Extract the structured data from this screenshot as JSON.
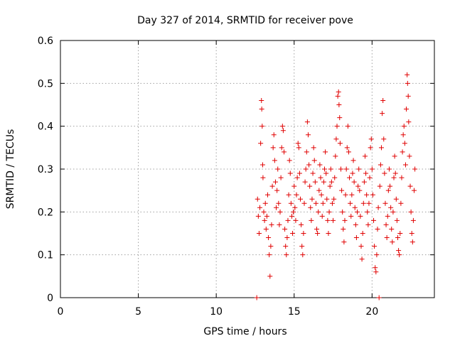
{
  "chart_data": {
    "type": "scatter",
    "title": "Day 327 of 2014, SRMTID for receiver pove",
    "xlabel": "GPS time / hours",
    "ylabel": "SRMTID / TECUs",
    "xlim": [
      0,
      24
    ],
    "ylim": [
      0,
      0.6
    ],
    "xticks": [
      0,
      5,
      10,
      15,
      20
    ],
    "xtick_labels": [
      "0",
      "5",
      "10",
      "15",
      "20"
    ],
    "yticks": [
      0,
      0.1,
      0.2,
      0.3,
      0.4,
      0.5,
      0.6
    ],
    "ytick_labels": [
      "0",
      "0.1",
      "0.2",
      "0.3",
      "0.4",
      "0.5",
      "0.6"
    ],
    "grid": true,
    "marker": "plus",
    "color": "#e00000",
    "series": [
      {
        "name": "SRMTID",
        "points": [
          [
            12.6,
            0.0
          ],
          [
            12.65,
            0.23
          ],
          [
            12.7,
            0.19
          ],
          [
            12.75,
            0.15
          ],
          [
            12.8,
            0.21
          ],
          [
            12.85,
            0.36
          ],
          [
            12.9,
            0.46
          ],
          [
            12.92,
            0.44
          ],
          [
            12.95,
            0.4
          ],
          [
            12.98,
            0.31
          ],
          [
            13.0,
            0.28
          ],
          [
            13.05,
            0.2
          ],
          [
            13.1,
            0.18
          ],
          [
            13.15,
            0.22
          ],
          [
            13.2,
            0.16
          ],
          [
            13.25,
            0.19
          ],
          [
            13.3,
            0.24
          ],
          [
            13.35,
            0.14
          ],
          [
            13.4,
            0.1
          ],
          [
            13.45,
            0.05
          ],
          [
            13.5,
            0.12
          ],
          [
            13.55,
            0.17
          ],
          [
            13.6,
            0.26
          ],
          [
            13.65,
            0.35
          ],
          [
            13.7,
            0.38
          ],
          [
            13.75,
            0.32
          ],
          [
            13.8,
            0.27
          ],
          [
            13.85,
            0.21
          ],
          [
            13.9,
            0.25
          ],
          [
            13.95,
            0.3
          ],
          [
            14.0,
            0.22
          ],
          [
            14.05,
            0.17
          ],
          [
            14.1,
            0.2
          ],
          [
            14.15,
            0.28
          ],
          [
            14.2,
            0.35
          ],
          [
            14.25,
            0.4
          ],
          [
            14.3,
            0.39
          ],
          [
            14.35,
            0.34
          ],
          [
            14.4,
            0.16
          ],
          [
            14.45,
            0.12
          ],
          [
            14.5,
            0.1
          ],
          [
            14.55,
            0.14
          ],
          [
            14.6,
            0.18
          ],
          [
            14.65,
            0.24
          ],
          [
            14.7,
            0.32
          ],
          [
            14.75,
            0.29
          ],
          [
            14.8,
            0.22
          ],
          [
            14.85,
            0.19
          ],
          [
            14.9,
            0.15
          ],
          [
            14.95,
            0.2
          ],
          [
            15.0,
            0.26
          ],
          [
            15.05,
            0.21
          ],
          [
            15.1,
            0.18
          ],
          [
            15.15,
            0.24
          ],
          [
            15.2,
            0.28
          ],
          [
            15.25,
            0.36
          ],
          [
            15.3,
            0.35
          ],
          [
            15.35,
            0.29
          ],
          [
            15.4,
            0.23
          ],
          [
            15.45,
            0.17
          ],
          [
            15.5,
            0.12
          ],
          [
            15.55,
            0.1
          ],
          [
            15.6,
            0.15
          ],
          [
            15.65,
            0.22
          ],
          [
            15.7,
            0.27
          ],
          [
            15.75,
            0.3
          ],
          [
            15.8,
            0.34
          ],
          [
            15.85,
            0.41
          ],
          [
            15.9,
            0.38
          ],
          [
            15.95,
            0.31
          ],
          [
            16.0,
            0.26
          ],
          [
            16.05,
            0.21
          ],
          [
            16.1,
            0.18
          ],
          [
            16.15,
            0.23
          ],
          [
            16.2,
            0.29
          ],
          [
            16.25,
            0.35
          ],
          [
            16.3,
            0.32
          ],
          [
            16.35,
            0.27
          ],
          [
            16.4,
            0.22
          ],
          [
            16.45,
            0.16
          ],
          [
            16.5,
            0.15
          ],
          [
            16.55,
            0.2
          ],
          [
            16.6,
            0.25
          ],
          [
            16.65,
            0.31
          ],
          [
            16.7,
            0.28
          ],
          [
            16.75,
            0.24
          ],
          [
            16.8,
            0.19
          ],
          [
            16.85,
            0.22
          ],
          [
            16.9,
            0.27
          ],
          [
            16.95,
            0.3
          ],
          [
            17.0,
            0.34
          ],
          [
            17.05,
            0.29
          ],
          [
            17.1,
            0.23
          ],
          [
            17.15,
            0.18
          ],
          [
            17.2,
            0.15
          ],
          [
            17.25,
            0.2
          ],
          [
            17.3,
            0.26
          ],
          [
            17.35,
            0.3
          ],
          [
            17.4,
            0.27
          ],
          [
            17.45,
            0.22
          ],
          [
            17.5,
            0.18
          ],
          [
            17.55,
            0.23
          ],
          [
            17.6,
            0.28
          ],
          [
            17.65,
            0.33
          ],
          [
            17.7,
            0.37
          ],
          [
            17.75,
            0.4
          ],
          [
            17.8,
            0.47
          ],
          [
            17.85,
            0.48
          ],
          [
            17.88,
            0.45
          ],
          [
            17.92,
            0.42
          ],
          [
            17.95,
            0.36
          ],
          [
            18.0,
            0.3
          ],
          [
            18.05,
            0.25
          ],
          [
            18.1,
            0.2
          ],
          [
            18.15,
            0.16
          ],
          [
            18.2,
            0.13
          ],
          [
            18.25,
            0.18
          ],
          [
            18.3,
            0.24
          ],
          [
            18.35,
            0.3
          ],
          [
            18.4,
            0.35
          ],
          [
            18.45,
            0.4
          ],
          [
            18.5,
            0.34
          ],
          [
            18.55,
            0.28
          ],
          [
            18.6,
            0.22
          ],
          [
            18.65,
            0.19
          ],
          [
            18.7,
            0.24
          ],
          [
            18.75,
            0.29
          ],
          [
            18.8,
            0.32
          ],
          [
            18.85,
            0.27
          ],
          [
            18.9,
            0.21
          ],
          [
            18.95,
            0.17
          ],
          [
            19.0,
            0.14
          ],
          [
            19.05,
            0.2
          ],
          [
            19.1,
            0.26
          ],
          [
            19.15,
            0.3
          ],
          [
            19.2,
            0.25
          ],
          [
            19.25,
            0.19
          ],
          [
            19.3,
            0.12
          ],
          [
            19.35,
            0.09
          ],
          [
            19.4,
            0.15
          ],
          [
            19.45,
            0.22
          ],
          [
            19.5,
            0.27
          ],
          [
            19.55,
            0.33
          ],
          [
            19.6,
            0.29
          ],
          [
            19.65,
            0.24
          ],
          [
            19.7,
            0.2
          ],
          [
            19.75,
            0.17
          ],
          [
            19.8,
            0.22
          ],
          [
            19.85,
            0.28
          ],
          [
            19.9,
            0.35
          ],
          [
            19.95,
            0.37
          ],
          [
            20.0,
            0.3
          ],
          [
            20.05,
            0.24
          ],
          [
            20.1,
            0.18
          ],
          [
            20.15,
            0.12
          ],
          [
            20.2,
            0.07
          ],
          [
            20.25,
            0.06
          ],
          [
            20.3,
            0.1
          ],
          [
            20.35,
            0.16
          ],
          [
            20.4,
            0.21
          ],
          [
            20.45,
            0.0
          ],
          [
            20.5,
            0.26
          ],
          [
            20.55,
            0.31
          ],
          [
            20.6,
            0.35
          ],
          [
            20.65,
            0.43
          ],
          [
            20.7,
            0.46
          ],
          [
            20.75,
            0.37
          ],
          [
            20.8,
            0.29
          ],
          [
            20.85,
            0.22
          ],
          [
            20.9,
            0.17
          ],
          [
            20.95,
            0.14
          ],
          [
            21.0,
            0.19
          ],
          [
            21.05,
            0.25
          ],
          [
            21.1,
            0.3
          ],
          [
            21.15,
            0.26
          ],
          [
            21.2,
            0.21
          ],
          [
            21.25,
            0.16
          ],
          [
            21.3,
            0.13
          ],
          [
            21.35,
            0.2
          ],
          [
            21.4,
            0.28
          ],
          [
            21.45,
            0.33
          ],
          [
            21.5,
            0.29
          ],
          [
            21.55,
            0.23
          ],
          [
            21.6,
            0.18
          ],
          [
            21.65,
            0.14
          ],
          [
            21.7,
            0.11
          ],
          [
            21.75,
            0.1
          ],
          [
            21.8,
            0.15
          ],
          [
            21.85,
            0.22
          ],
          [
            21.9,
            0.28
          ],
          [
            21.95,
            0.34
          ],
          [
            22.0,
            0.38
          ],
          [
            22.05,
            0.4
          ],
          [
            22.1,
            0.36
          ],
          [
            22.15,
            0.31
          ],
          [
            22.2,
            0.44
          ],
          [
            22.25,
            0.52
          ],
          [
            22.28,
            0.5
          ],
          [
            22.32,
            0.47
          ],
          [
            22.35,
            0.41
          ],
          [
            22.4,
            0.33
          ],
          [
            22.45,
            0.26
          ],
          [
            22.5,
            0.2
          ],
          [
            22.55,
            0.15
          ],
          [
            22.6,
            0.13
          ],
          [
            22.65,
            0.18
          ],
          [
            22.7,
            0.25
          ],
          [
            22.75,
            0.3
          ]
        ]
      }
    ]
  }
}
